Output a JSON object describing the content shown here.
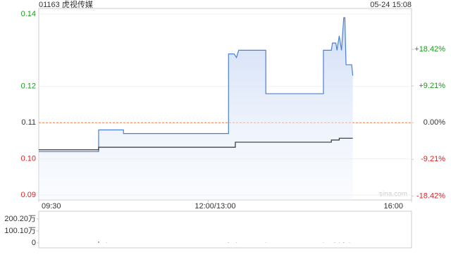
{
  "title": "01163 虎视传媒",
  "timestamp": "05-24 15:08",
  "watermark": "sina.com",
  "chart_data": [
    {
      "type": "line",
      "base": 0.11,
      "base_color": "#f08040",
      "xlim": [
        0,
        330
      ],
      "xticks": [
        {
          "value": 0,
          "label": "09:30"
        },
        {
          "value": 150,
          "label": "12:00/13:00"
        },
        {
          "value": 330,
          "label": "16:00"
        }
      ],
      "ylim": [
        0.09,
        0.14
      ],
      "yticks": [
        0.14,
        0.12,
        0.11,
        {
          "value": 0.1,
          "label": "0.10"
        },
        0.09
      ],
      "y2lim": [
        -18.18,
        27.27
      ],
      "y2ticks": [
        {
          "value": 18.42,
          "label": "+18.42%"
        },
        {
          "value": 9.21,
          "label": "+9.21%"
        },
        {
          "value": 0,
          "label": "0.00%"
        },
        {
          "value": -9.21,
          "label": "-9.21%"
        },
        {
          "value": -18.42,
          "label": "-18.42%"
        }
      ],
      "up_color": "#1a9a1a",
      "down_color": "#e02020",
      "series": [
        {
          "color": "#4a7fd8",
          "area": true,
          "x": [
            0,
            53,
            53,
            75,
            75,
            168,
            168,
            173,
            175,
            177,
            201,
            201,
            252,
            252,
            259,
            260,
            263,
            264,
            266,
            268,
            270,
            271,
            272,
            277,
            278
          ],
          "values": [
            0.102,
            0.102,
            0.108,
            0.108,
            0.107,
            0.107,
            0.129,
            0.129,
            0.128,
            0.13,
            0.13,
            0.118,
            0.118,
            0.13,
            0.13,
            0.132,
            0.132,
            0.13,
            0.134,
            0.13,
            0.139,
            0.139,
            0.126,
            0.126,
            0.123
          ]
        },
        {
          "color": "#333333",
          "area": false,
          "x": [
            0,
            53,
            53,
            174,
            174,
            259,
            259,
            266,
            266,
            278
          ],
          "values": [
            0.1025,
            0.1025,
            0.1032,
            0.1032,
            0.1046,
            0.1046,
            0.1052,
            0.1052,
            0.1057,
            0.1057
          ]
        }
      ]
    },
    {
      "type": "bar",
      "color": "#555555",
      "xlim": [
        0,
        330
      ],
      "ylim": [
        0,
        200.2
      ],
      "yticks": [
        {
          "value": 200.2,
          "label": "200.20万"
        },
        {
          "value": 100.1,
          "label": "100.10万"
        },
        0
      ],
      "x": [
        53,
        60,
        168,
        175,
        201,
        252,
        262,
        266,
        270,
        275
      ],
      "values": [
        12,
        2,
        3,
        2,
        2,
        2,
        3,
        2,
        4,
        2
      ]
    }
  ]
}
